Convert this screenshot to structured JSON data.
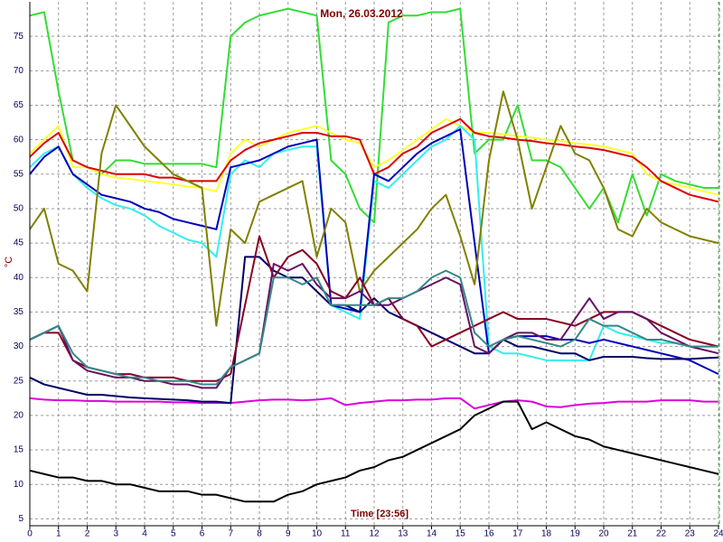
{
  "chart_data": {
    "type": "line",
    "title": "Mon, 26.03.2012",
    "x_label": "Time [23:56]",
    "y_label": "°C",
    "x": [
      0,
      0.5,
      1,
      1.5,
      2,
      2.5,
      3,
      3.5,
      4,
      4.5,
      5,
      5.5,
      6,
      6.5,
      7,
      7.5,
      8,
      8.5,
      9,
      9.5,
      10,
      10.5,
      11,
      11.5,
      12,
      12.5,
      13,
      13.5,
      14,
      14.5,
      15,
      15.5,
      16,
      16.5,
      17,
      17.5,
      18,
      18.5,
      19,
      19.5,
      20,
      20.5,
      21,
      21.5,
      22,
      22.5,
      23,
      23.5,
      24
    ],
    "xlim": [
      0,
      24
    ],
    "xticks": [
      0,
      1,
      2,
      3,
      4,
      5,
      6,
      7,
      8,
      9,
      10,
      11,
      12,
      13,
      14,
      15,
      16,
      17,
      18,
      19,
      20,
      21,
      22,
      23,
      24
    ],
    "ylim": [
      4,
      80
    ],
    "yticks": [
      5,
      10,
      15,
      20,
      25,
      30,
      35,
      40,
      45,
      50,
      55,
      60,
      65,
      70,
      75
    ],
    "grid": true,
    "series": [
      {
        "color": "#33dd33",
        "values": [
          78,
          78.5,
          67,
          57,
          56,
          55,
          57,
          57,
          56.5,
          56.5,
          56.5,
          56.5,
          56.5,
          56,
          75,
          77,
          78,
          78.5,
          79,
          78.5,
          78,
          57,
          55,
          50,
          48,
          77,
          78,
          78,
          78.5,
          78.5,
          79,
          58,
          60,
          60,
          65,
          57,
          57,
          56,
          53,
          50,
          53,
          48,
          55,
          49,
          55,
          54,
          53.5,
          53,
          53
        ]
      },
      {
        "color": "#ffff33",
        "values": [
          58,
          60,
          62,
          56,
          56,
          55,
          54.5,
          54.3,
          54,
          53.8,
          53.5,
          53.2,
          53,
          52.5,
          58,
          60,
          59,
          60,
          61,
          61.5,
          62,
          61,
          60,
          59.5,
          56,
          57,
          58.5,
          60,
          61.5,
          63,
          62,
          61,
          61,
          60.8,
          60.5,
          60.3,
          60,
          59.8,
          59.5,
          59.3,
          59,
          58.5,
          58,
          55,
          54,
          53.5,
          53,
          52.5,
          52
        ]
      },
      {
        "color": "#dd0000",
        "values": [
          57.5,
          59.5,
          61,
          57,
          56,
          55.5,
          55,
          55,
          55,
          54.5,
          54.5,
          54,
          54,
          54,
          57,
          58.5,
          59.5,
          60,
          60.5,
          61,
          61,
          60.5,
          60.5,
          60,
          55,
          56,
          58,
          59,
          61,
          62,
          63,
          61,
          60.5,
          60.3,
          60,
          59.8,
          59.5,
          59.3,
          59,
          58.8,
          58.5,
          58,
          57.5,
          56,
          54,
          53,
          52,
          51.5,
          51
        ]
      },
      {
        "color": "#33eeee",
        "values": [
          56,
          58,
          59,
          55,
          53,
          51.5,
          50.5,
          50,
          49,
          47.5,
          46.5,
          45.5,
          45,
          43,
          55,
          57,
          56,
          58,
          58.5,
          59,
          59,
          36,
          35,
          34,
          54,
          53,
          55,
          57,
          59,
          60,
          62,
          60,
          30,
          29,
          29,
          28.5,
          28,
          28,
          28,
          28,
          33,
          32,
          31.5,
          31,
          30.5,
          30.5,
          30,
          30,
          30
        ]
      },
      {
        "color": "#0000bb",
        "values": [
          55,
          57.5,
          59,
          55,
          53.5,
          52,
          51.5,
          51,
          50,
          49.5,
          48.5,
          48,
          47.5,
          47,
          56,
          56.5,
          57,
          58,
          59,
          59.5,
          60,
          36,
          35.5,
          35,
          55,
          54,
          56,
          58,
          59.5,
          60.5,
          61.5,
          45,
          29,
          31,
          31.5,
          31.5,
          31.5,
          31,
          31,
          30.5,
          31,
          30.5,
          30,
          29.5,
          29,
          28.5,
          28,
          27,
          26
        ]
      },
      {
        "color": "#808000",
        "values": [
          47,
          50,
          42,
          41,
          38,
          58,
          65,
          62,
          59,
          57,
          55,
          54,
          53,
          33,
          47,
          45,
          51,
          52,
          53,
          54,
          43,
          50,
          48,
          38,
          41,
          43,
          45,
          47,
          50,
          52,
          46,
          39,
          57,
          67,
          60,
          50,
          56,
          62,
          58,
          57,
          53,
          47,
          46,
          50,
          48,
          47,
          46,
          45.5,
          45
        ]
      },
      {
        "color": "#dd00dd",
        "values": [
          22.5,
          22.3,
          22.2,
          22.2,
          22.1,
          22.1,
          22,
          22,
          22,
          22,
          21.9,
          21.9,
          21.8,
          21.8,
          21.8,
          22,
          22.2,
          22.3,
          22.3,
          22.2,
          22.3,
          22.5,
          21.5,
          21.8,
          22,
          22.2,
          22.2,
          22.3,
          22.3,
          22.5,
          22.5,
          21,
          21.5,
          22,
          22.2,
          22,
          21.3,
          21.2,
          21.5,
          21.7,
          21.8,
          22,
          22,
          22,
          22.2,
          22.2,
          22.2,
          22,
          22
        ]
      },
      {
        "color": "#000000",
        "values": [
          12,
          11.5,
          11,
          11,
          10.5,
          10.5,
          10,
          10,
          9.5,
          9,
          9,
          9,
          8.5,
          8.5,
          8,
          7.5,
          7.5,
          7.5,
          8.5,
          9,
          10,
          10.5,
          11,
          12,
          12.5,
          13.5,
          14,
          15,
          16,
          17,
          18,
          20,
          21,
          22,
          22,
          18,
          19,
          18,
          17,
          16.5,
          15.5,
          15,
          14.5,
          14,
          13.5,
          13,
          12.5,
          12,
          11.5
        ]
      },
      {
        "color": "#000066",
        "values": [
          25.5,
          24.5,
          24,
          23.5,
          23,
          23,
          22.8,
          22.6,
          22.5,
          22.4,
          22.3,
          22.2,
          22,
          22,
          21.8,
          43,
          43,
          41,
          40,
          40,
          38,
          36,
          36,
          35,
          37,
          35,
          34,
          33,
          32,
          31,
          30,
          29,
          29,
          31,
          30,
          30,
          29.5,
          29,
          29,
          28,
          28.5,
          28.5,
          28.5,
          28.3,
          28.2,
          28.2,
          28.2,
          28.3,
          28.4
        ]
      },
      {
        "color": "#880022",
        "values": [
          31,
          32,
          32,
          28,
          27,
          26.5,
          26,
          26,
          25.5,
          25.5,
          25.5,
          25,
          25,
          25,
          26,
          36,
          46,
          40,
          43,
          44,
          42,
          38,
          37,
          40,
          36,
          37,
          34,
          33,
          30,
          31,
          32,
          33,
          34,
          35,
          34,
          34,
          34,
          33.5,
          33,
          34,
          35,
          35,
          35,
          34,
          33,
          32,
          31,
          30.5,
          30
        ]
      },
      {
        "color": "#661166",
        "values": [
          31,
          32,
          33,
          28,
          26.5,
          26,
          25.5,
          25.5,
          25,
          25,
          24.5,
          24.5,
          24,
          24,
          27,
          28,
          29,
          42,
          41,
          42,
          39,
          37,
          37,
          38,
          36,
          36,
          37,
          38,
          39,
          40,
          39,
          30,
          29,
          31,
          32,
          32,
          31,
          31,
          34,
          37,
          34,
          35,
          35,
          34,
          32,
          31,
          30,
          29.5,
          29
        ]
      },
      {
        "color": "#338888",
        "values": [
          31,
          32,
          33,
          29,
          27,
          26.5,
          26,
          25.5,
          25.5,
          25,
          25,
          25,
          24.5,
          24.5,
          27,
          28,
          29,
          40,
          40,
          39,
          40,
          36,
          36,
          36,
          36,
          37,
          37,
          38,
          40,
          41,
          40,
          32,
          30,
          31,
          31.5,
          31,
          30.5,
          30,
          31,
          34,
          33,
          33,
          32,
          31,
          31,
          30.5,
          30,
          30,
          30
        ]
      }
    ]
  }
}
